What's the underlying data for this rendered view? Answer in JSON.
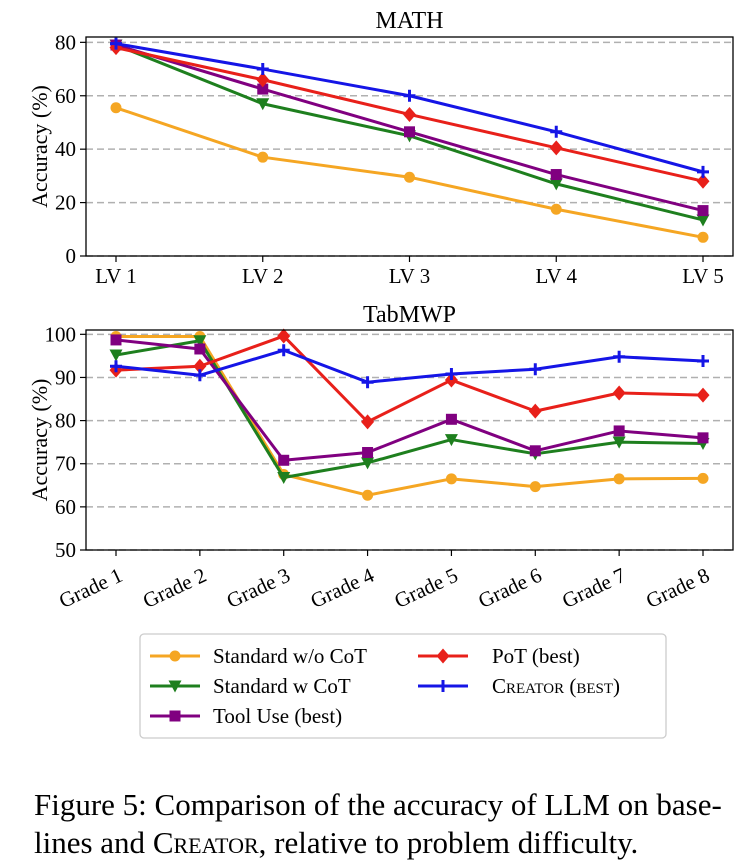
{
  "chart_data": [
    {
      "type": "line",
      "title": "MATH",
      "xlabel": "",
      "ylabel": "Accuracy (%)",
      "categories": [
        "LV 1",
        "LV 2",
        "LV 3",
        "LV 4",
        "LV 5"
      ],
      "ylim": [
        0,
        82
      ],
      "yticks": [
        0,
        20,
        40,
        60,
        80
      ],
      "grid": "horizontal dashed",
      "series": [
        {
          "key": "std",
          "values": [
            55.5,
            37,
            29.5,
            17.5,
            7
          ]
        },
        {
          "key": "cot",
          "values": [
            79,
            57,
            45,
            27,
            13.5
          ]
        },
        {
          "key": "tool",
          "values": [
            79,
            62.5,
            46.5,
            30.5,
            17
          ]
        },
        {
          "key": "pot",
          "values": [
            78,
            66,
            53,
            40.5,
            28
          ]
        },
        {
          "key": "creator",
          "values": [
            79.5,
            70,
            60,
            46.5,
            31.5
          ]
        }
      ]
    },
    {
      "type": "line",
      "title": "TabMWP",
      "xlabel": "",
      "ylabel": "Accuracy (%)",
      "categories": [
        "Grade 1",
        "Grade 2",
        "Grade 3",
        "Grade 4",
        "Grade 5",
        "Grade 6",
        "Grade 7",
        "Grade 8"
      ],
      "ylim": [
        50,
        101
      ],
      "yticks": [
        50,
        60,
        70,
        80,
        90,
        100
      ],
      "grid": "horizontal dashed",
      "series": [
        {
          "key": "std",
          "values": [
            99.5,
            99.5,
            67.5,
            62.7,
            66.5,
            64.7,
            66.5,
            66.6
          ]
        },
        {
          "key": "cot",
          "values": [
            95.2,
            98.5,
            66.8,
            70.2,
            75.6,
            72.3,
            75,
            74.7
          ]
        },
        {
          "key": "tool",
          "values": [
            98.7,
            96.6,
            70.8,
            72.6,
            80.3,
            73,
            77.6,
            76
          ]
        },
        {
          "key": "pot",
          "values": [
            91.7,
            92.6,
            99.6,
            79.7,
            89.4,
            82.2,
            86.4,
            85.9
          ]
        },
        {
          "key": "creator",
          "values": [
            92.6,
            90.5,
            96.3,
            88.9,
            90.8,
            91.9,
            94.8,
            93.8
          ]
        }
      ]
    }
  ],
  "legend": {
    "placement": "bottom-center",
    "items": [
      {
        "key": "std",
        "label": "Standard w/o CoT",
        "color": "#f5a623",
        "marker": "circle"
      },
      {
        "key": "cot",
        "label": "Standard w CoT",
        "color": "#1e7f1e",
        "marker": "triangle-down"
      },
      {
        "key": "tool",
        "label": "Tool Use (best)",
        "color": "#800080",
        "marker": "square"
      },
      {
        "key": "pot",
        "label": "PoT (best)",
        "color": "#e8201a",
        "marker": "diamond"
      },
      {
        "key": "creator",
        "label": "Creator (best)",
        "color": "#1515e6",
        "marker": "plus"
      }
    ]
  },
  "caption": {
    "prefix": "Figure 5: Comparison of the accuracy of LLM on base-",
    "line2_start": "lines and ",
    "method": "Creator",
    "line2_end": ", relative to problem difficulty."
  }
}
